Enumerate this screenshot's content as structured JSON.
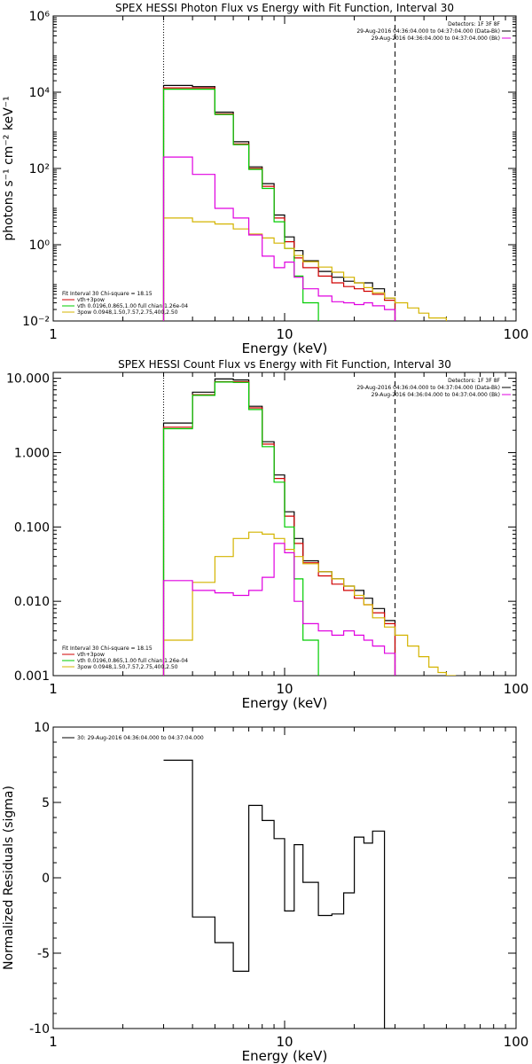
{
  "chart_data": [
    {
      "type": "line",
      "title": "SPEX HESSI Photon Flux vs Energy with Fit Function, Interval 30",
      "xlabel": "Energy (keV)",
      "ylabel": "photons s⁻¹ cm⁻² keV⁻¹",
      "xscale": "log",
      "yscale": "log",
      "xlim": [
        1,
        100
      ],
      "ylim": [
        0.01,
        1000000
      ],
      "xticks": [
        {
          "v": 1,
          "label": "1"
        },
        {
          "v": 10,
          "label": "10"
        },
        {
          "v": 100,
          "label": "100"
        }
      ],
      "yticks": [
        {
          "v": 0.01,
          "label": "10⁻²"
        },
        {
          "v": 1,
          "label": "10⁰"
        },
        {
          "v": 100,
          "label": "10²"
        },
        {
          "v": 10000,
          "label": "10⁴"
        },
        {
          "v": 1000000,
          "label": "10⁶"
        }
      ],
      "vlines": [
        {
          "x": 3,
          "style": "dotted"
        },
        {
          "x": 30,
          "style": "dashed"
        }
      ],
      "legend_top_right": [
        {
          "text": "Detectors: 1F 3F 8F",
          "color": null
        },
        {
          "text": "29-Aug-2016 04:36:04.000 to 04:37:04.000 (Data-Bk)",
          "color": "#000000"
        },
        {
          "text": "29-Aug-2016 04:36:04.000 to 04:37:04.000 (Bk)",
          "color": "#e000e0"
        }
      ],
      "legend_bottom_left": [
        {
          "text": "Fit Interval 30   Chi-square = 18.15",
          "color": null
        },
        {
          "text": "vth+3pow",
          "color": "#d00000"
        },
        {
          "text": "vth 0.0196,0.865,1.00  full chian 1.26e-04",
          "color": "#00cc00"
        },
        {
          "text": "3pow 0.0948,1.50,7.57,2.75,400,2.50",
          "color": "#d4b400"
        }
      ],
      "series": [
        {
          "color": "#000000",
          "edges": [
            3,
            4,
            5,
            6,
            7,
            8,
            9,
            10,
            11,
            12,
            14,
            16,
            18,
            20,
            22,
            24,
            27,
            30
          ],
          "values": [
            15000,
            14000,
            3000,
            500,
            110,
            40,
            6,
            1.6,
            0.7,
            0.38,
            0.2,
            0.14,
            0.11,
            0.1,
            0.1,
            0.07,
            0.04
          ]
        },
        {
          "color": "#d00000",
          "edges": [
            3,
            4,
            5,
            6,
            7,
            8,
            9,
            10,
            11,
            12,
            14,
            16,
            18,
            20,
            22,
            24,
            27,
            30
          ],
          "values": [
            13000,
            13000,
            2700,
            440,
            100,
            34,
            5,
            1.2,
            0.45,
            0.25,
            0.15,
            0.1,
            0.08,
            0.07,
            0.06,
            0.05,
            0.035
          ]
        },
        {
          "color": "#00cc00",
          "edges": [
            3,
            4,
            5,
            6,
            7,
            8,
            9,
            10,
            11,
            12,
            14
          ],
          "values": [
            12000,
            12000,
            2600,
            420,
            95,
            30,
            4,
            0.8,
            0.15,
            0.03
          ]
        },
        {
          "color": "#d4b400",
          "edges": [
            3,
            4,
            5,
            6,
            7,
            8,
            9,
            10,
            11,
            12,
            14,
            16,
            18,
            20,
            22,
            24,
            27,
            30,
            34,
            38,
            42,
            50
          ],
          "values": [
            5,
            4,
            3.5,
            2.6,
            1.9,
            1.5,
            1.1,
            0.8,
            0.52,
            0.36,
            0.26,
            0.19,
            0.14,
            0.1,
            0.075,
            0.055,
            0.04,
            0.03,
            0.022,
            0.016,
            0.012
          ]
        },
        {
          "color": "#e000e0",
          "edges": [
            3,
            4,
            5,
            6,
            7,
            8,
            9,
            10,
            11,
            12,
            14,
            16,
            18,
            20,
            22,
            24,
            27,
            30
          ],
          "values": [
            200,
            70,
            9,
            5,
            1.8,
            0.5,
            0.25,
            0.35,
            0.14,
            0.07,
            0.045,
            0.032,
            0.03,
            0.027,
            0.03,
            0.025,
            0.02
          ]
        }
      ]
    },
    {
      "type": "line",
      "title": "SPEX HESSI Count Flux vs Energy with Fit Function, Interval 30",
      "xlabel": "Energy (keV)",
      "ylabel": "",
      "xscale": "log",
      "yscale": "log",
      "xlim": [
        1,
        100
      ],
      "ylim": [
        0.001,
        12
      ],
      "xticks": [
        {
          "v": 1,
          "label": "1"
        },
        {
          "v": 10,
          "label": "10"
        },
        {
          "v": 100,
          "label": "100"
        }
      ],
      "yticks": [
        {
          "v": 0.001,
          "label": "0.001"
        },
        {
          "v": 0.01,
          "label": "0.010"
        },
        {
          "v": 0.1,
          "label": "0.100"
        },
        {
          "v": 1,
          "label": "1.000"
        },
        {
          "v": 10,
          "label": "10.000"
        }
      ],
      "vlines": [
        {
          "x": 3,
          "style": "dotted"
        },
        {
          "x": 30,
          "style": "dashed"
        }
      ],
      "legend_top_right": [
        {
          "text": "Detectors: 1F 3F 8F",
          "color": null
        },
        {
          "text": "29-Aug-2016 04:36:04.000 to 04:37:04.000 (Data-Bk)",
          "color": "#000000"
        },
        {
          "text": "29-Aug-2016 04:36:04.000 to 04:37:04.000 (Bk)",
          "color": "#e000e0"
        }
      ],
      "legend_bottom_left": [
        {
          "text": "Fit Interval 30   Chi-square = 18.15",
          "color": null
        },
        {
          "text": "vth+3pow",
          "color": "#d00000"
        },
        {
          "text": "vth 0.0196,0.865,1.00  full chian 1.26e-04",
          "color": "#00cc00"
        },
        {
          "text": "3pow 0.0948,1.50,7.57,2.75,400,2.50",
          "color": "#d4b400"
        }
      ],
      "series": [
        {
          "color": "#000000",
          "edges": [
            3,
            4,
            5,
            6,
            7,
            8,
            9,
            10,
            11,
            12,
            14,
            16,
            18,
            20,
            22,
            24,
            27,
            30
          ],
          "values": [
            2.5,
            6.5,
            9.8,
            9.5,
            4.2,
            1.4,
            0.5,
            0.16,
            0.07,
            0.035,
            0.025,
            0.02,
            0.016,
            0.014,
            0.011,
            0.008,
            0.0055
          ]
        },
        {
          "color": "#d00000",
          "edges": [
            3,
            4,
            5,
            6,
            7,
            8,
            9,
            10,
            11,
            12,
            14,
            16,
            18,
            20,
            22,
            24,
            27,
            30
          ],
          "values": [
            2.2,
            6.0,
            9.0,
            9.0,
            4.0,
            1.3,
            0.45,
            0.14,
            0.06,
            0.033,
            0.022,
            0.017,
            0.014,
            0.011,
            0.009,
            0.007,
            0.005
          ]
        },
        {
          "color": "#00cc00",
          "edges": [
            3,
            4,
            5,
            6,
            7,
            8,
            9,
            10,
            11,
            12,
            14
          ],
          "values": [
            2.1,
            5.9,
            8.9,
            8.8,
            3.8,
            1.2,
            0.4,
            0.1,
            0.02,
            0.003
          ]
        },
        {
          "color": "#d4b400",
          "edges": [
            3,
            4,
            5,
            6,
            7,
            8,
            9,
            10,
            11,
            12,
            14,
            16,
            18,
            20,
            22,
            24,
            27,
            30,
            34,
            38,
            42,
            46,
            50,
            55
          ],
          "values": [
            0.003,
            0.018,
            0.04,
            0.07,
            0.085,
            0.08,
            0.07,
            0.05,
            0.04,
            0.032,
            0.025,
            0.02,
            0.016,
            0.012,
            0.009,
            0.006,
            0.0045,
            0.0035,
            0.0025,
            0.0018,
            0.0013,
            0.0011,
            0.001
          ]
        },
        {
          "color": "#e000e0",
          "edges": [
            3,
            4,
            5,
            6,
            7,
            8,
            9,
            10,
            11,
            12,
            14,
            16,
            18,
            20,
            22,
            24,
            27,
            30
          ],
          "values": [
            0.019,
            0.014,
            0.013,
            0.012,
            0.014,
            0.021,
            0.06,
            0.045,
            0.01,
            0.005,
            0.004,
            0.0035,
            0.004,
            0.0035,
            0.003,
            0.0025,
            0.002
          ]
        }
      ]
    },
    {
      "type": "line",
      "title": "",
      "xlabel": "Energy (keV)",
      "ylabel": "Normalized Residuals (sigma)",
      "xscale": "log",
      "yscale": "linear",
      "xlim": [
        1,
        100
      ],
      "ylim": [
        -10,
        10
      ],
      "xticks": [
        {
          "v": 1,
          "label": "1"
        },
        {
          "v": 10,
          "label": "10"
        },
        {
          "v": 100,
          "label": "100"
        }
      ],
      "yticks": [
        {
          "v": -10,
          "label": "-10"
        },
        {
          "v": -5,
          "label": "-5"
        },
        {
          "v": 0,
          "label": "0"
        },
        {
          "v": 5,
          "label": "5"
        },
        {
          "v": 10,
          "label": "10"
        }
      ],
      "vlines": [],
      "legend_top_right": [],
      "legend_top_left": [
        {
          "text": "30: 29-Aug-2016 04:36:04.000 to 04:37:04.000",
          "color": "#000000"
        }
      ],
      "legend_bottom_left": [],
      "series": [
        {
          "color": "#000000",
          "edges": [
            3,
            4,
            5,
            6,
            7,
            8,
            9,
            10,
            11,
            12,
            14,
            16,
            18,
            20,
            22,
            24,
            27,
            30
          ],
          "values": [
            7.8,
            -2.6,
            -4.3,
            -6.2,
            4.8,
            3.8,
            2.6,
            -2.2,
            2.2,
            -0.3,
            -2.5,
            -2.4,
            -1.0,
            2.7,
            2.3,
            3.1,
            -10
          ]
        }
      ]
    }
  ]
}
